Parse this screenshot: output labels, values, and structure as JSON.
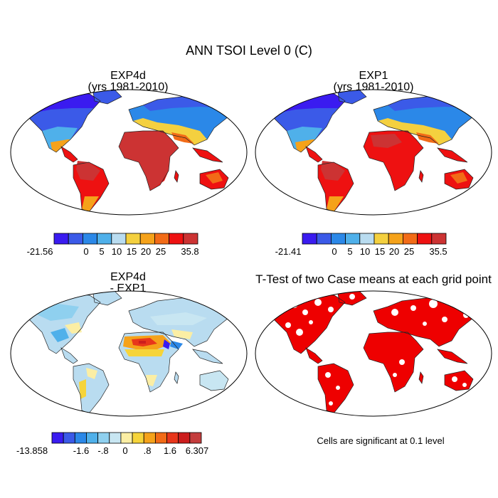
{
  "figure": {
    "title": "ANN TSOI Level 0 (C)"
  },
  "panels": [
    {
      "id": "exp4d",
      "title_line1": "EXP4d",
      "title_line2": "(yrs 1981-2010)",
      "colorbar": {
        "colors": [
          "#3a1bf0",
          "#3b5ae8",
          "#2b88e8",
          "#4fb0ea",
          "#b9dcf0",
          "#f4d03f",
          "#f5a21a",
          "#f26b17",
          "#ee1111",
          "#cc3333"
        ],
        "labels": [
          "-21.56",
          "0",
          "5",
          "10",
          "15",
          "20",
          "25",
          "35.8"
        ]
      }
    },
    {
      "id": "exp1",
      "title_line1": "EXP1",
      "title_line2": "(yrs 1981-2010)",
      "colorbar": {
        "colors": [
          "#3a1bf0",
          "#3b5ae8",
          "#2b88e8",
          "#4fb0ea",
          "#b9dcf0",
          "#f4d03f",
          "#f5a21a",
          "#f26b17",
          "#ee1111",
          "#cc3333"
        ],
        "labels": [
          "-21.41",
          "0",
          "5",
          "10",
          "15",
          "20",
          "25",
          "35.5"
        ]
      }
    },
    {
      "id": "diff",
      "title_line1": "EXP4d",
      "title_line2": "- EXP1",
      "colorbar": {
        "colors": [
          "#3a1bf0",
          "#3b5ae8",
          "#2b88e8",
          "#4fb0ea",
          "#8fd0ef",
          "#c8e6f2",
          "#fbeea4",
          "#f6d43a",
          "#f5a21a",
          "#f26b17",
          "#e8361b",
          "#cc1d1d",
          "#c43d3d"
        ],
        "labels": [
          "-13.858",
          "-1.6",
          "-.8",
          "0",
          ".8",
          "1.6",
          "6.307"
        ]
      }
    },
    {
      "id": "ttest",
      "title_line1": "T-Test of two Case means at each grid point",
      "note": "Cells are significant at 0.1 level",
      "color": "#ee0000"
    }
  ]
}
